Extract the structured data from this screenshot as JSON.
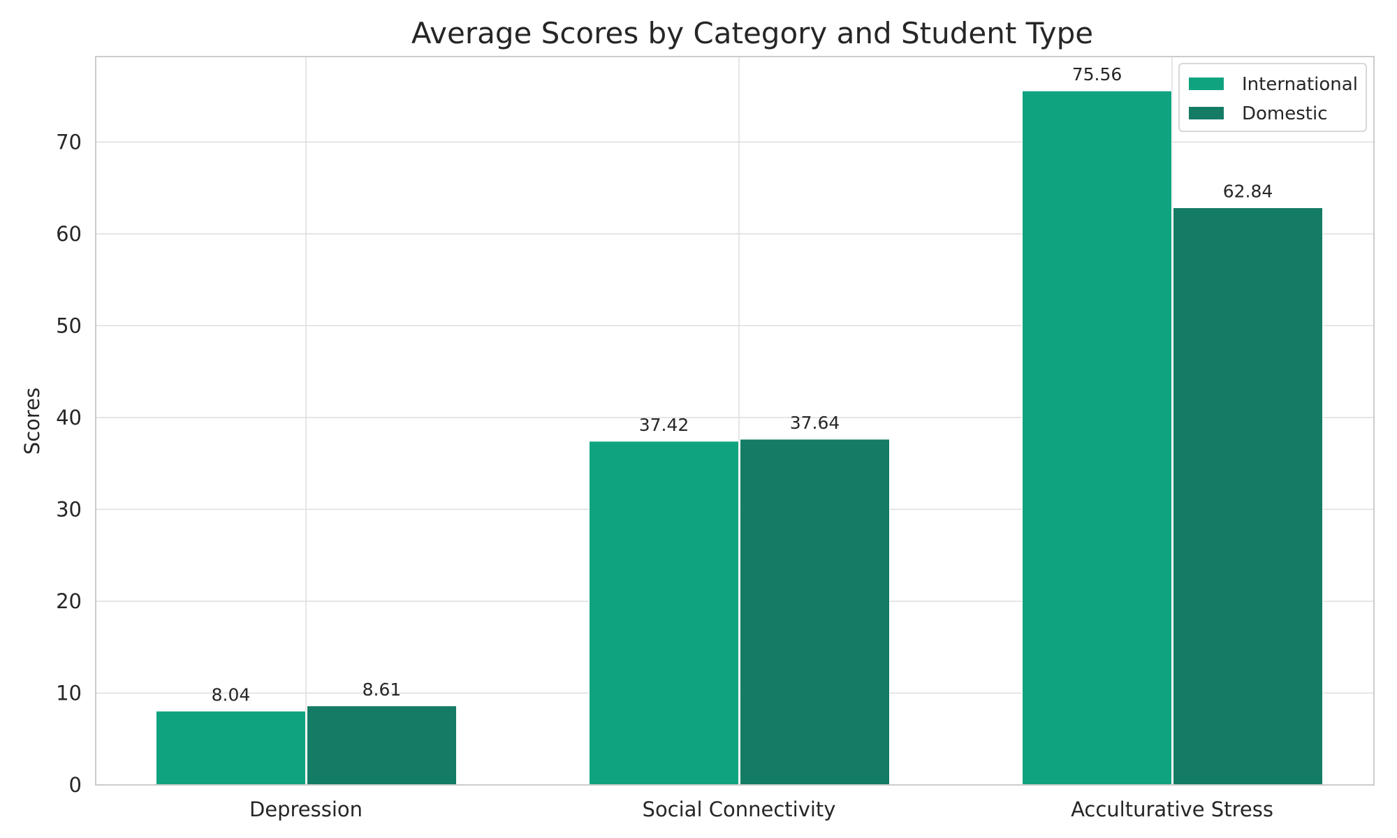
{
  "chart_data": {
    "type": "bar",
    "title": "Average Scores by Category and Student Type",
    "xlabel": "",
    "ylabel": "Scores",
    "categories": [
      "Depression",
      "Social Connectivity",
      "Acculturative Stress"
    ],
    "series": [
      {
        "name": "International",
        "values": [
          8.04,
          37.42,
          75.56
        ],
        "labels": [
          "8.04",
          "37.42",
          "75.56"
        ],
        "color": "#10a37f"
      },
      {
        "name": "Domestic",
        "values": [
          8.61,
          37.64,
          62.84
        ],
        "labels": [
          "8.61",
          "37.64",
          "62.84"
        ],
        "color": "#147b64"
      }
    ],
    "ylim": [
      0,
      79.3
    ],
    "yticks": [
      0,
      10,
      20,
      30,
      40,
      50,
      60,
      70
    ],
    "ytick_labels": [
      "0",
      "10",
      "20",
      "30",
      "40",
      "50",
      "60",
      "70"
    ],
    "grid": true,
    "legend_position": "top-right"
  }
}
